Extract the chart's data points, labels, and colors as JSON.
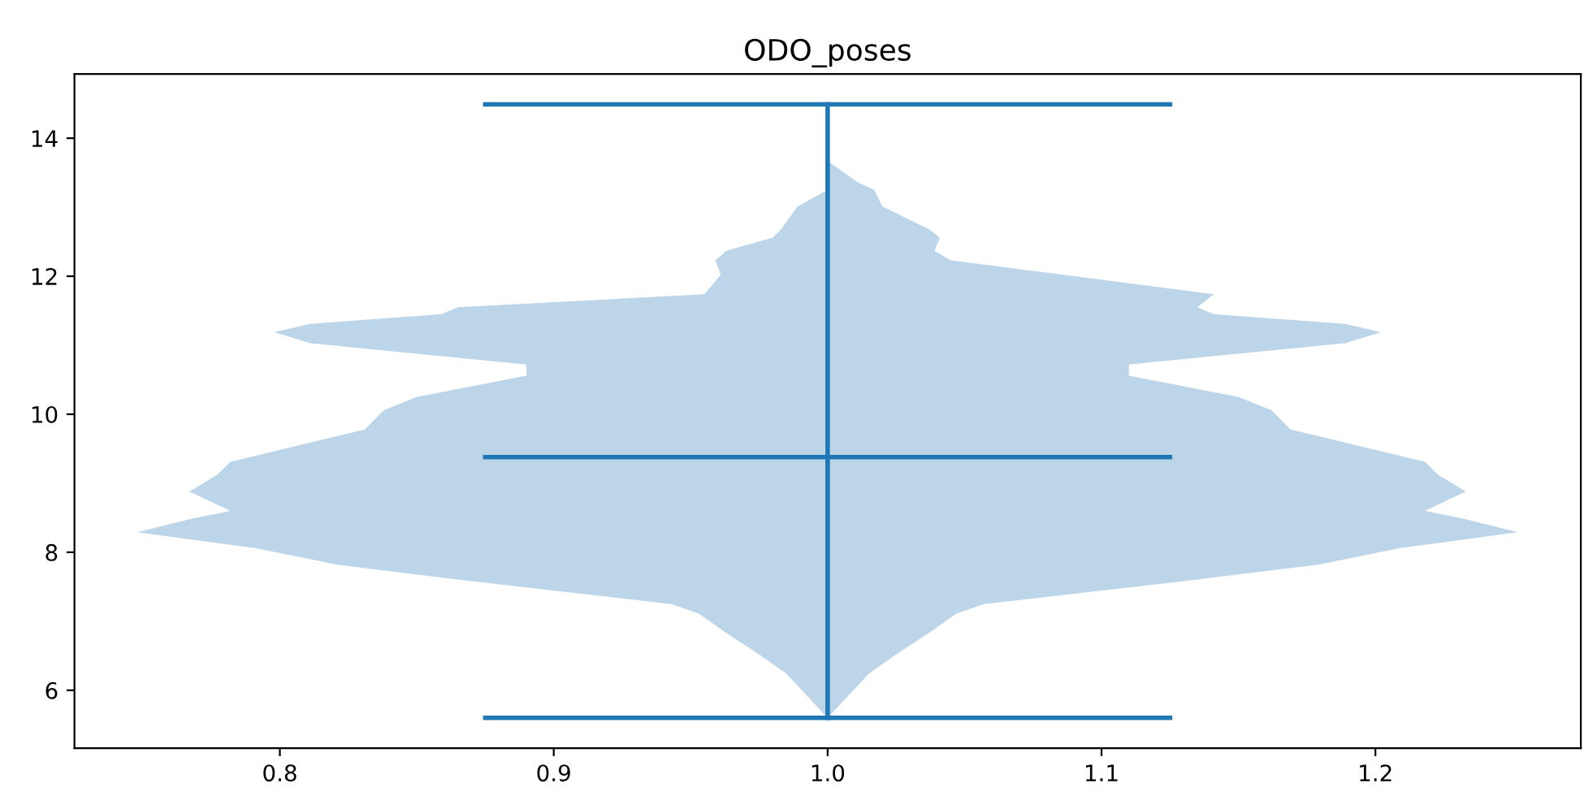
{
  "chart_data": {
    "type": "area",
    "title": "ODO_poses",
    "xlim": [
      0.725,
      1.275
    ],
    "ylim": [
      5.16,
      14.93
    ],
    "xticks": [
      {
        "value": 0.8,
        "label": "0.8"
      },
      {
        "value": 0.9,
        "label": "0.9"
      },
      {
        "value": 1.0,
        "label": "1.0"
      },
      {
        "value": 1.1,
        "label": "1.1"
      },
      {
        "value": 1.2,
        "label": "1.2"
      }
    ],
    "yticks": [
      6,
      8,
      10,
      12,
      14
    ],
    "grid": false,
    "legend": false,
    "series": [
      {
        "color": "#bcd5e8",
        "x": [
          1.0,
          1.0,
          1.011,
          1.017,
          1.02,
          1.037,
          1.041,
          1.039,
          1.045,
          1.086,
          1.141,
          1.135,
          1.141,
          1.189,
          1.202,
          1.189,
          1.11,
          1.11,
          1.15,
          1.162,
          1.169,
          1.218,
          1.223,
          1.233,
          1.218,
          1.233,
          1.252,
          1.209,
          1.179,
          1.13,
          1.057,
          1.047,
          1.037,
          1.025,
          1.015,
          1.0,
          0.985,
          0.975,
          0.963,
          0.953,
          0.943,
          0.87,
          0.821,
          0.791,
          0.748,
          0.767,
          0.782,
          0.767,
          0.777,
          0.782,
          0.831,
          0.838,
          0.85,
          0.89,
          0.89,
          0.811,
          0.798,
          0.811,
          0.859,
          0.865,
          0.955,
          0.961,
          0.959,
          0.963,
          0.98,
          0.983,
          0.989,
          1.0
        ],
        "values": [
          14.49,
          13.67,
          13.36,
          13.25,
          13.01,
          12.68,
          12.56,
          12.37,
          12.23,
          12.02,
          11.74,
          11.55,
          11.45,
          11.31,
          11.19,
          11.03,
          10.72,
          10.56,
          10.25,
          10.06,
          9.78,
          9.31,
          9.12,
          8.88,
          8.6,
          8.48,
          8.29,
          8.06,
          7.82,
          7.58,
          7.25,
          7.11,
          6.83,
          6.52,
          6.24,
          5.6,
          6.24,
          6.52,
          6.83,
          7.11,
          7.25,
          7.58,
          7.82,
          8.06,
          8.29,
          8.48,
          8.6,
          8.88,
          9.12,
          9.31,
          9.78,
          10.06,
          10.25,
          10.56,
          10.72,
          11.03,
          11.19,
          11.31,
          11.45,
          11.55,
          11.74,
          12.02,
          12.23,
          12.37,
          12.56,
          12.68,
          13.01,
          13.25
        ]
      },
      {
        "type": "line",
        "color": "#1f77b4",
        "x": [
          0.875,
          1.125
        ],
        "values": [
          14.49,
          14.49
        ]
      },
      {
        "type": "line",
        "color": "#1f77b4",
        "x": [
          0.875,
          1.125
        ],
        "values": [
          9.38,
          9.38
        ]
      },
      {
        "type": "line",
        "color": "#1f77b4",
        "x": [
          0.875,
          1.125
        ],
        "values": [
          5.6,
          5.6
        ]
      },
      {
        "type": "line",
        "color": "#1f77b4",
        "x": [
          1.0,
          1.0
        ],
        "values": [
          5.6,
          14.49
        ]
      }
    ]
  }
}
